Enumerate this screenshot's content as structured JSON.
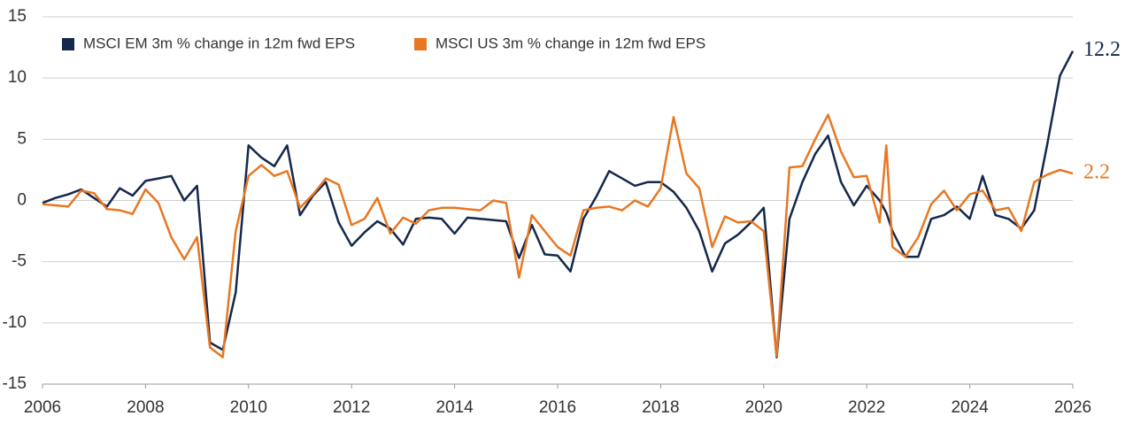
{
  "chart_data": {
    "type": "line",
    "x": [
      2006.0,
      2006.25,
      2006.5,
      2006.75,
      2007.0,
      2007.25,
      2007.5,
      2007.75,
      2008.0,
      2008.25,
      2008.5,
      2008.75,
      2009.0,
      2009.25,
      2009.5,
      2009.75,
      2010.0,
      2010.25,
      2010.5,
      2010.75,
      2011.0,
      2011.25,
      2011.5,
      2011.75,
      2012.0,
      2012.25,
      2012.5,
      2012.75,
      2013.0,
      2013.25,
      2013.5,
      2013.75,
      2014.0,
      2014.25,
      2014.5,
      2014.75,
      2015.0,
      2015.25,
      2015.5,
      2015.75,
      2016.0,
      2016.25,
      2016.5,
      2016.75,
      2017.0,
      2017.25,
      2017.5,
      2017.75,
      2018.0,
      2018.25,
      2018.5,
      2018.75,
      2019.0,
      2019.25,
      2019.5,
      2019.75,
      2020.0,
      2020.25,
      2020.5,
      2020.75,
      2021.0,
      2021.25,
      2021.5,
      2021.75,
      2022.0,
      2022.25,
      2022.38,
      2022.5,
      2022.75,
      2023.0,
      2023.25,
      2023.5,
      2023.75,
      2024.0,
      2024.25,
      2024.5,
      2024.75,
      2025.0,
      2025.25,
      2025.5,
      2025.75,
      2026.0
    ],
    "series": [
      {
        "name": "MSCI EM 3m % change in 12m fwd EPS",
        "color": "#14284b",
        "values": [
          -0.2,
          0.2,
          0.5,
          0.9,
          0.2,
          -0.5,
          1.0,
          0.4,
          1.6,
          1.8,
          2.0,
          0.0,
          1.2,
          -11.6,
          -12.2,
          -7.5,
          4.5,
          3.5,
          2.8,
          4.5,
          -1.2,
          0.4,
          1.5,
          -1.8,
          -3.7,
          -2.6,
          -1.7,
          -2.3,
          -3.6,
          -1.5,
          -1.4,
          -1.5,
          -2.7,
          -1.4,
          -1.5,
          -1.6,
          -1.7,
          -4.7,
          -2.0,
          -4.4,
          -4.5,
          -5.8,
          -1.5,
          0.3,
          2.4,
          1.8,
          1.2,
          1.5,
          1.5,
          0.7,
          -0.6,
          -2.5,
          -5.8,
          -3.5,
          -2.8,
          -1.8,
          -0.6,
          -12.8,
          -1.5,
          1.5,
          3.8,
          5.3,
          1.5,
          -0.4,
          1.2,
          0.0,
          -1.0,
          -2.5,
          -4.6,
          -4.6,
          -1.5,
          -1.2,
          -0.5,
          -1.5,
          2.0,
          -1.2,
          -1.5,
          -2.3,
          -0.8,
          4.5,
          10.2,
          12.2
        ]
      },
      {
        "name": "MSCI US 3m % change in 12m fwd EPS",
        "color": "#e87722",
        "values": [
          -0.3,
          -0.4,
          -0.5,
          0.8,
          0.6,
          -0.7,
          -0.8,
          -1.1,
          0.9,
          -0.2,
          -3.0,
          -4.8,
          -3.0,
          -12.0,
          -12.8,
          -2.5,
          2.0,
          2.9,
          2.0,
          2.4,
          -0.6,
          0.5,
          1.8,
          1.3,
          -2.0,
          -1.5,
          0.2,
          -2.7,
          -1.4,
          -1.9,
          -0.8,
          -0.6,
          -0.6,
          -0.7,
          -0.8,
          0.0,
          -0.2,
          -6.3,
          -1.2,
          -2.5,
          -3.8,
          -4.5,
          -0.8,
          -0.6,
          -0.5,
          -0.8,
          0.0,
          -0.5,
          1.0,
          6.8,
          2.2,
          1.0,
          -3.8,
          -1.3,
          -1.8,
          -1.7,
          -2.5,
          -12.7,
          2.7,
          2.8,
          5.0,
          7.0,
          4.0,
          1.9,
          2.0,
          -1.8,
          4.5,
          -3.8,
          -4.6,
          -3.0,
          -0.3,
          0.8,
          -0.8,
          0.5,
          0.8,
          -0.8,
          -0.6,
          -2.5,
          1.5,
          2.1,
          2.5,
          2.2
        ]
      }
    ],
    "xlim": [
      2006,
      2026
    ],
    "xticks": [
      2006,
      2008,
      2010,
      2012,
      2014,
      2016,
      2018,
      2020,
      2022,
      2024,
      2026
    ],
    "ylim": [
      -15,
      15
    ],
    "yticks": [
      -15,
      -10,
      -5,
      0,
      5,
      10,
      15
    ],
    "grid": true,
    "legend": "top-left"
  }
}
